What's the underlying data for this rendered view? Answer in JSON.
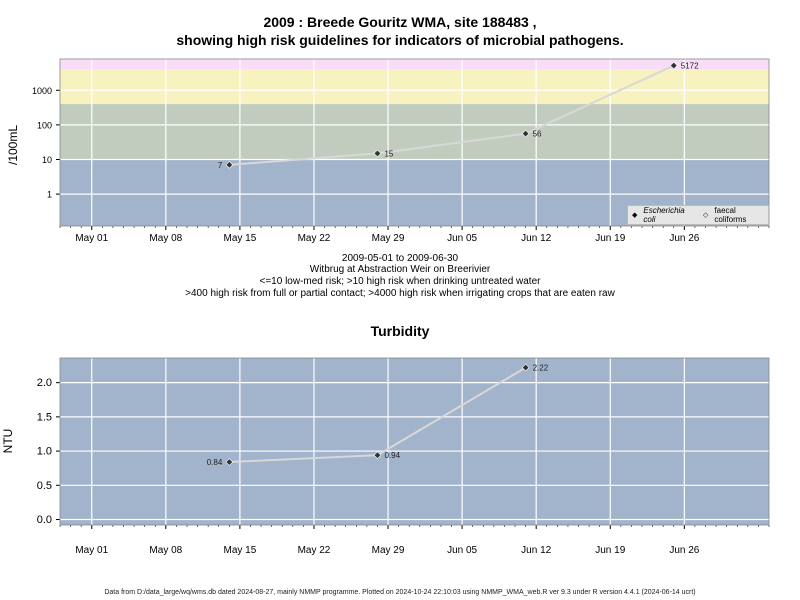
{
  "charts": {
    "top": {
      "title_line1": "2009 : Breede Gouritz WMA, site 188483 ,",
      "title_line2": "showing high risk guidelines for indicators of microbial pathogens.",
      "ylabel": "/100mL",
      "caption": [
        "2009-05-01 to 2009-06-30",
        "Witbrug at Abstraction Weir on Breerivier",
        "<=10 low-med risk; >10 high risk when drinking untreated water",
        ">400 high risk from full or partial contact; >4000 high risk when irrigating crops that are eaten raw"
      ],
      "legend": {
        "ecoli": "Escherichia coli",
        "faecal": "faecal coliforms"
      }
    },
    "bottom": {
      "title": "Turbidity",
      "ylabel": "NTU"
    }
  },
  "footer": "Data from D:/data_large/wq/wms.db dated 2024-08-27, mainly NMMP programme. Plotted on 2024-10-24 22:10:03 using NMMP_WMA_web.R ver 9.3 under R version 4.4.1 (2024-06-14 ucrt)",
  "colors": {
    "band_low": "#a2b3cc",
    "band_high": "#c2ccbe",
    "band_contact": "#f7f2bf",
    "band_irrigation": "#f8dcf8",
    "grid": "#ffffff",
    "line": "#d8d8d8",
    "point": "#333333"
  },
  "chart_data": [
    {
      "type": "line",
      "title": "2009 : Breede Gouritz WMA, site 188483 , showing high risk guidelines for indicators of microbial pathogens.",
      "ylabel": "/100mL",
      "yscale": "log",
      "x_ticks": [
        "May 01",
        "May 08",
        "May 15",
        "May 22",
        "May 29",
        "Jun 05",
        "Jun 12",
        "Jun 19",
        "Jun 26"
      ],
      "x_tick_dates": [
        "2009-05-01",
        "2009-05-08",
        "2009-05-15",
        "2009-05-22",
        "2009-05-29",
        "2009-06-05",
        "2009-06-12",
        "2009-06-19",
        "2009-06-26"
      ],
      "xlim": [
        "2009-04-28",
        "2009-07-04"
      ],
      "ylim": [
        0.12,
        8000
      ],
      "y_ticks": [
        1,
        10,
        100,
        1000
      ],
      "y_tick_labels": [
        "1",
        "10",
        "100",
        "1000"
      ],
      "bands": [
        {
          "from": 0.12,
          "to": 10,
          "color": "#a2b3cc"
        },
        {
          "from": 10,
          "to": 400,
          "color": "#c2ccbe"
        },
        {
          "from": 400,
          "to": 4000,
          "color": "#f7f2bf"
        },
        {
          "from": 4000,
          "to": 8000,
          "color": "#f8dcf8"
        }
      ],
      "series": [
        {
          "name": "Escherichia coli",
          "x": [
            "2009-05-14",
            "2009-05-28",
            "2009-06-11",
            "2009-06-25"
          ],
          "y": [
            7,
            15,
            56,
            5172
          ],
          "labels": [
            "7",
            "15",
            "56",
            "5172"
          ],
          "label_side": [
            "left",
            "right",
            "right",
            "right"
          ]
        }
      ],
      "grid": true,
      "legend_position": "bottom-right"
    },
    {
      "type": "line",
      "title": "Turbidity",
      "ylabel": "NTU",
      "x_ticks": [
        "May 01",
        "May 08",
        "May 15",
        "May 22",
        "May 29",
        "Jun 05",
        "Jun 12",
        "Jun 19",
        "Jun 26"
      ],
      "x_tick_dates": [
        "2009-05-01",
        "2009-05-08",
        "2009-05-15",
        "2009-05-22",
        "2009-05-29",
        "2009-06-05",
        "2009-06-12",
        "2009-06-19",
        "2009-06-26"
      ],
      "xlim": [
        "2009-04-28",
        "2009-07-04"
      ],
      "ylim": [
        -0.08,
        2.36
      ],
      "y_ticks": [
        0,
        0.5,
        1,
        1.5,
        2
      ],
      "y_tick_labels": [
        "0.0",
        "0.5",
        "1.0",
        "1.5",
        "2.0"
      ],
      "series": [
        {
          "x": [
            "2009-05-14",
            "2009-05-28",
            "2009-06-11"
          ],
          "y": [
            0.84,
            0.94,
            2.22
          ],
          "labels": [
            "0.84",
            "0.94",
            "2.22"
          ],
          "label_side": [
            "left",
            "right",
            "right"
          ]
        }
      ],
      "grid": true
    }
  ]
}
